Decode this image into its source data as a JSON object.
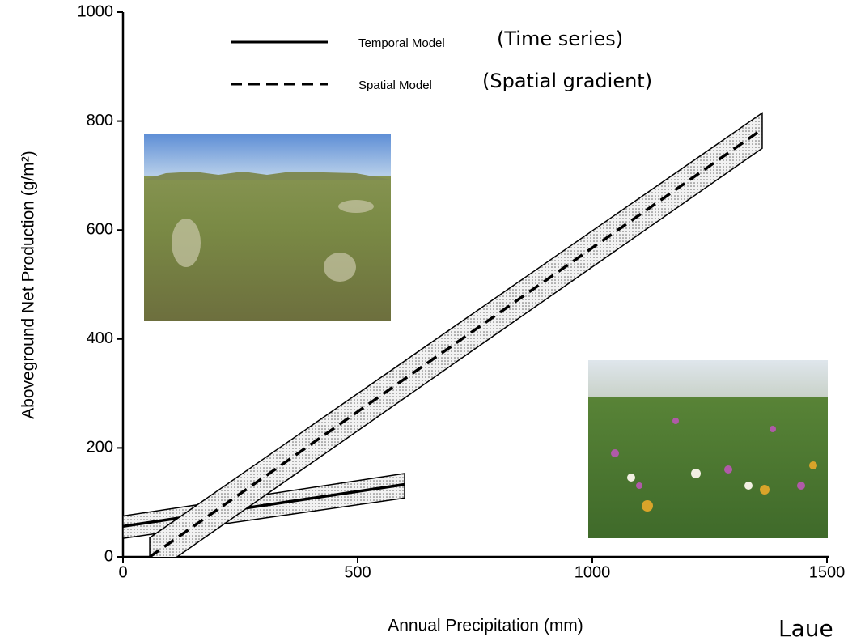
{
  "chart_data": {
    "type": "line",
    "x_label": "Annual Precipitation (mm)",
    "y_label": "Aboveground Net Production (g/m²)",
    "xlim": [
      0,
      1500
    ],
    "xticks": [
      0,
      500,
      1000,
      1500
    ],
    "ylim": [
      0,
      1000
    ],
    "yticks": [
      0,
      200,
      400,
      600,
      800,
      1000
    ],
    "series": [
      {
        "name": "Temporal Model",
        "annotation": "(Time series)",
        "style": "solid",
        "color": "#000000",
        "x": [
          0,
          600
        ],
        "values": [
          56,
          133
        ],
        "lower": [
          34,
          108
        ],
        "upper": [
          75,
          153
        ]
      },
      {
        "name": "Spatial Model",
        "annotation": "(Spatial gradient)",
        "style": "dashed",
        "color": "#000000",
        "x": [
          57,
          1362
        ],
        "values": [
          0,
          785
        ],
        "lower": [
          -35,
          750
        ],
        "upper": [
          35,
          815
        ]
      }
    ],
    "credit": "Laue"
  }
}
